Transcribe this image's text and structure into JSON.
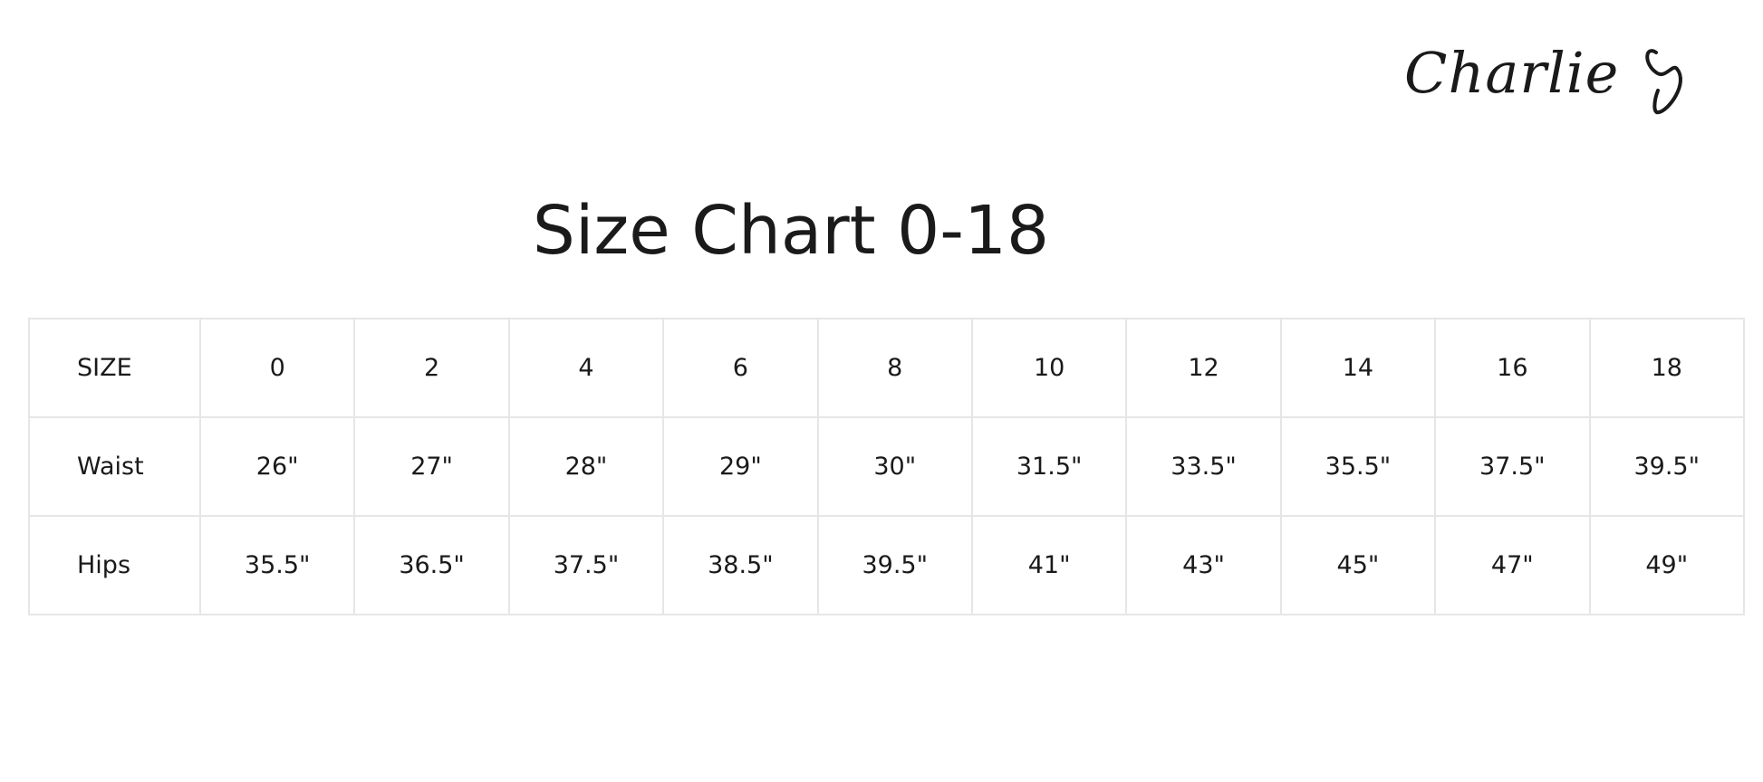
{
  "brand": {
    "logo_text": "Charlie"
  },
  "title": "Size Chart 0-18",
  "table": {
    "header": [
      "SIZE",
      "0",
      "2",
      "4",
      "6",
      "8",
      "10",
      "12",
      "14",
      "16",
      "18"
    ],
    "rows": [
      [
        "Waist",
        "26\"",
        "27\"",
        "28\"",
        "29\"",
        "30\"",
        "31.5\"",
        "33.5\"",
        "35.5\"",
        "37.5\"",
        "39.5\""
      ],
      [
        "Hips",
        "35.5\"",
        "36.5\"",
        "37.5\"",
        "38.5\"",
        "39.5\"",
        "41\"",
        "43\"",
        "45\"",
        "47\"",
        "49\""
      ]
    ]
  }
}
